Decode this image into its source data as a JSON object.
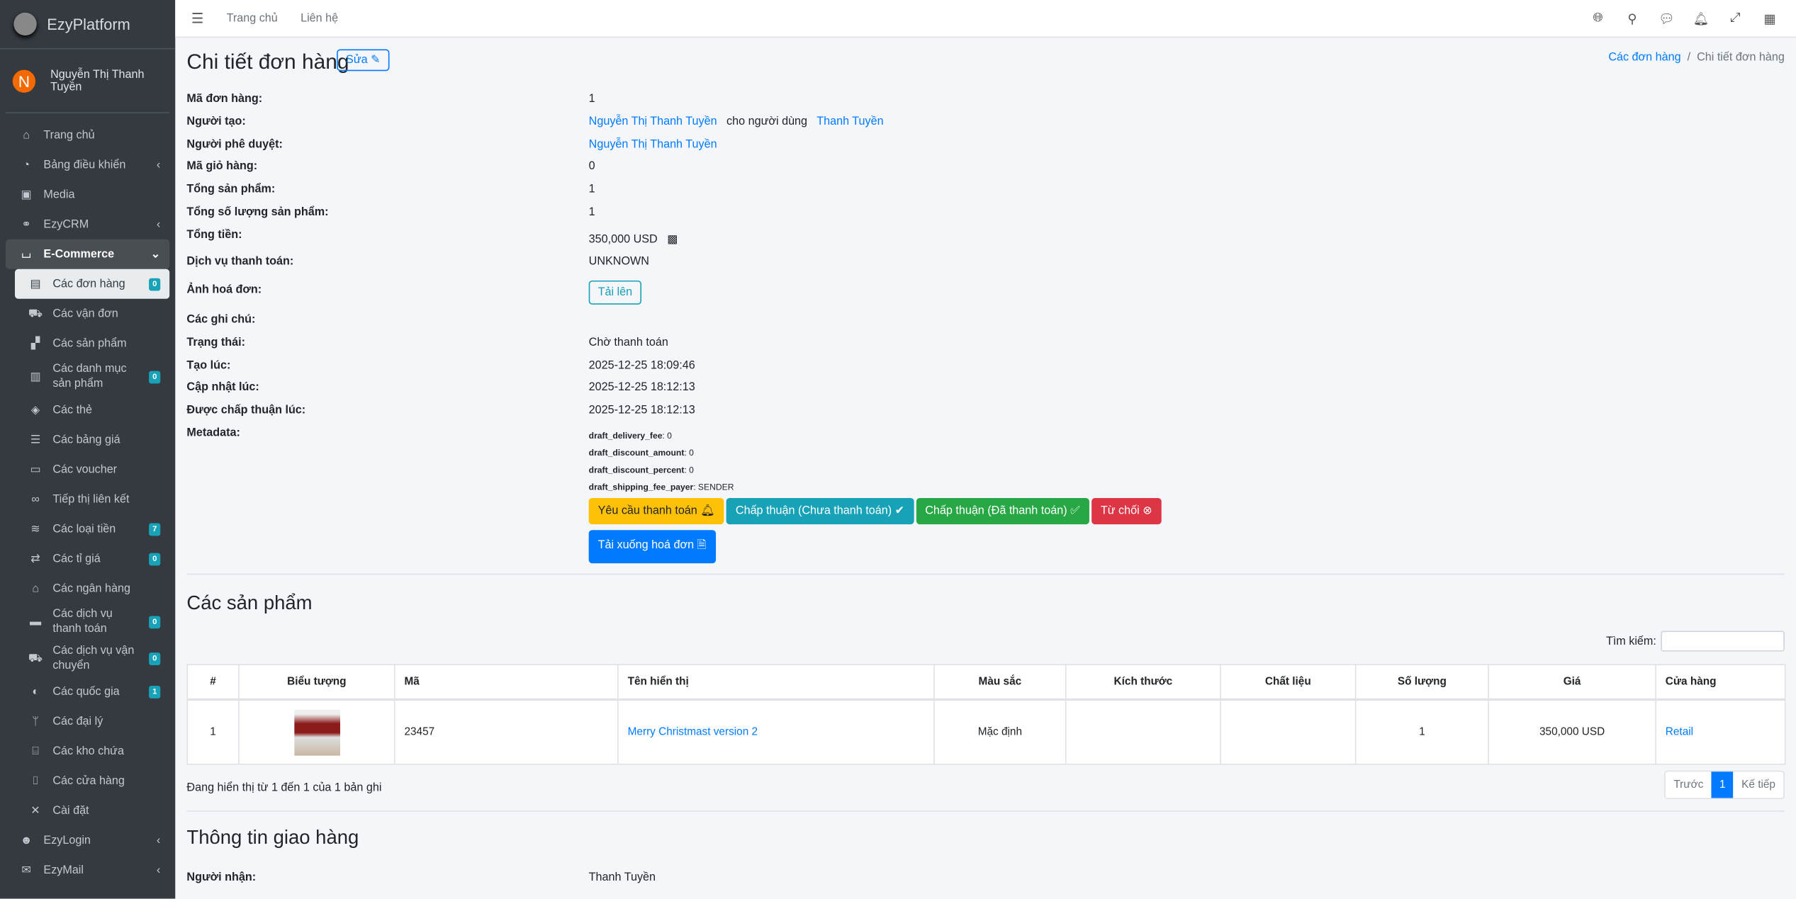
{
  "brand": "EzyPlatform",
  "user": {
    "initial": "N",
    "name": "Nguyễn Thị Thanh Tuyền"
  },
  "sidebar": [
    {
      "label": "Trang chủ",
      "icon": "home-icon"
    },
    {
      "label": "Bảng điều khiển",
      "icon": "dashboard-icon",
      "chevron": "‹"
    },
    {
      "label": "Media",
      "icon": "image-icon"
    },
    {
      "label": "EzyCRM",
      "icon": "handshake-icon",
      "chevron": "‹"
    },
    {
      "label": "E-Commerce",
      "icon": "basket-icon",
      "chevron": "⌄"
    },
    {
      "label": "Các đơn hàng",
      "icon": "receipt-icon",
      "badge": "0"
    },
    {
      "label": "Các vận đơn",
      "icon": "shipping-icon"
    },
    {
      "label": "Các sản phẩm",
      "icon": "boxes-icon"
    },
    {
      "label": "Các danh mục sản phẩm",
      "icon": "clipboard-icon",
      "badge": "0"
    },
    {
      "label": "Các thẻ",
      "icon": "tags-icon"
    },
    {
      "label": "Các bảng giá",
      "icon": "list-icon"
    },
    {
      "label": "Các voucher",
      "icon": "ticket-icon"
    },
    {
      "label": "Tiếp thị liên kết",
      "icon": "link-icon"
    },
    {
      "label": "Các loại tiền",
      "icon": "coins-icon",
      "badge": "7"
    },
    {
      "label": "Các tỉ giá",
      "icon": "exchange-icon",
      "badge": "0"
    },
    {
      "label": "Các ngân hàng",
      "icon": "bank-icon"
    },
    {
      "label": "Các dịch vụ thanh toán",
      "icon": "credit-card-icon",
      "badge": "0"
    },
    {
      "label": "Các dịch vụ vận chuyển",
      "icon": "truck-icon",
      "badge": "0"
    },
    {
      "label": "Các quốc gia",
      "icon": "globe-icon",
      "badge": "1"
    },
    {
      "label": "Các đại lý",
      "icon": "branch-icon"
    },
    {
      "label": "Các kho chứa",
      "icon": "warehouse-icon"
    },
    {
      "label": "Các cửa hàng",
      "icon": "store-icon"
    },
    {
      "label": "Cài đặt",
      "icon": "tools-icon"
    },
    {
      "label": "EzyLogin",
      "icon": "user-shield-icon",
      "chevron": "‹"
    },
    {
      "label": "EzyMail",
      "icon": "envelope-icon",
      "chevron": "‹"
    }
  ],
  "topbar": {
    "links": [
      "Trang chủ",
      "Liên hệ"
    ],
    "icons": [
      "globe-icon",
      "search-icon",
      "comments-icon",
      "bell-icon",
      "expand-icon",
      "grid-icon"
    ]
  },
  "page": {
    "title": "Chi tiết đơn hàng",
    "edit": "Sửa",
    "breadcrumb": [
      "Các đơn hàng",
      "Chi tiết đơn hàng"
    ]
  },
  "details": {
    "order_id": {
      "label": "Mã đơn hàng:",
      "value": "1"
    },
    "creator": {
      "label": "Người tạo:",
      "value": "Nguyễn Thị Thanh Tuyền",
      "for_text": "cho người dùng",
      "for_user": "Thanh Tuyền"
    },
    "approver": {
      "label": "Người phê duyệt:",
      "value": "Nguyễn Thị Thanh Tuyền"
    },
    "cart_id": {
      "label": "Mã giỏ hàng:",
      "value": "0"
    },
    "total_products": {
      "label": "Tổng sản phẩm:",
      "value": "1"
    },
    "total_quantity": {
      "label": "Tổng số lượng sản phẩm:",
      "value": "1"
    },
    "total": {
      "label": "Tổng tiền:",
      "value": "350,000 USD"
    },
    "payment": {
      "label": "Dịch vụ thanh toán:",
      "value": "UNKNOWN"
    },
    "invoice_image": {
      "label": "Ảnh hoá đơn:",
      "button": "Tải lên"
    },
    "notes": {
      "label": "Các ghi chú:"
    },
    "status": {
      "label": "Trạng thái:",
      "value": "Chờ thanh toán"
    },
    "created": {
      "label": "Tạo lúc:",
      "value": "2025-12-25 18:09:46"
    },
    "updated": {
      "label": "Cập nhật lúc:",
      "value": "2025-12-25 18:12:13"
    },
    "approved": {
      "label": "Được chấp thuận lúc:",
      "value": "2025-12-25 18:12:13"
    },
    "metadata": {
      "label": "Metadata:",
      "items": [
        {
          "k": "draft_delivery_fee",
          "v": "0"
        },
        {
          "k": "draft_discount_amount",
          "v": "0"
        },
        {
          "k": "draft_discount_percent",
          "v": "0"
        },
        {
          "k": "draft_shipping_fee_payer",
          "v": "SENDER"
        }
      ]
    }
  },
  "actions": {
    "request_payment": "Yêu cầu thanh toán",
    "approve_unpaid": "Chấp thuận (Chưa thanh toán)",
    "approve_paid": "Chấp thuận (Đã thanh toán)",
    "reject": "Từ chối",
    "download_invoice": "Tải xuống hoá đơn"
  },
  "colors": {
    "warning": "#ffc107",
    "info": "#17a2b8",
    "success": "#28a745",
    "danger": "#dc3545",
    "primary": "#007bff"
  },
  "products": {
    "title": "Các sản phẩm",
    "search_label": "Tìm kiếm:",
    "columns": [
      "#",
      "Biểu tượng",
      "Mã",
      "Tên hiển thị",
      "Màu sắc",
      "Kích thước",
      "Chất liệu",
      "Số lượng",
      "Giá",
      "Cửa hàng"
    ],
    "rows": [
      {
        "index": "1",
        "code": "23457",
        "name": "Merry Christmast version 2",
        "color": "Mặc định",
        "size": "",
        "material": "",
        "quantity": "1",
        "price": "350,000 USD",
        "store": "Retail"
      }
    ],
    "info": "Đang hiển thị từ 1 đến 1 của 1 bản ghi",
    "prev": "Trước",
    "page": "1",
    "next": "Kế tiếp"
  },
  "shipping": {
    "title": "Thông tin giao hàng",
    "recipient_label": "Người nhận:",
    "recipient": "Thanh Tuyền"
  }
}
